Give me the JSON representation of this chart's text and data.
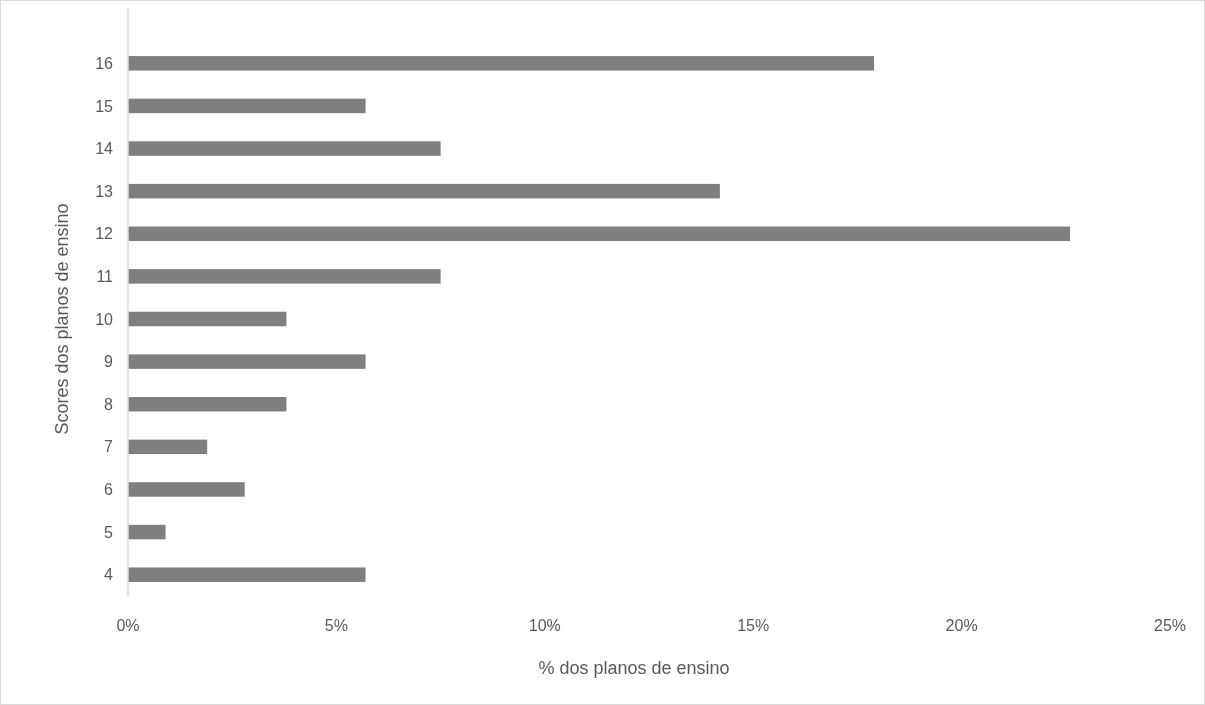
{
  "chart_data": {
    "type": "bar",
    "orientation": "horizontal",
    "xlabel": "% dos planos de ensino",
    "ylabel": "Scores dos planos de ensino",
    "categories": [
      "16",
      "15",
      "14",
      "13",
      "12",
      "11",
      "10",
      "9",
      "8",
      "7",
      "6",
      "5",
      "4"
    ],
    "values": [
      17.9,
      5.7,
      7.5,
      14.2,
      22.6,
      7.5,
      3.8,
      5.7,
      3.8,
      1.9,
      2.8,
      0.9,
      5.7
    ],
    "color": "#7f7f7f",
    "xlim": [
      0,
      25
    ],
    "xticks": [
      {
        "value": 0,
        "label": "0%"
      },
      {
        "value": 5,
        "label": "5%"
      },
      {
        "value": 10,
        "label": "10%"
      },
      {
        "value": 15,
        "label": "15%"
      },
      {
        "value": 20,
        "label": "20%"
      },
      {
        "value": 25,
        "label": "25%"
      }
    ],
    "grid": false
  }
}
